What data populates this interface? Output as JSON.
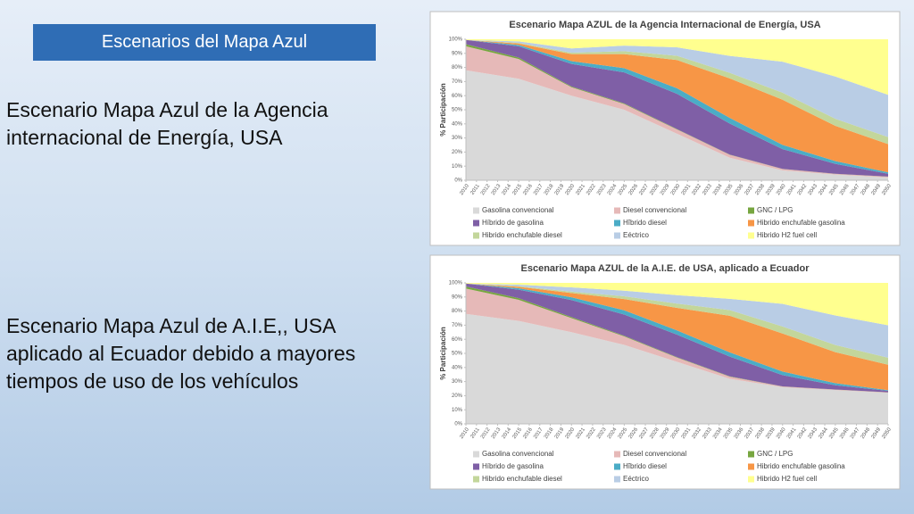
{
  "header": {
    "title": "Escenarios del Mapa Azul"
  },
  "bullets": [
    {
      "lines": [
        "Escenario Mapa Azul de la Agencia",
        "internacional de Energía, USA"
      ]
    },
    {
      "lines": [
        "Escenario Mapa Azul  de A.I.E,, USA",
        "aplicado al Ecuador debido a mayores",
        "tiempos de uso de los vehículos"
      ]
    }
  ],
  "chart_data": [
    {
      "type": "stacked_area",
      "title": "Escenario Mapa AZUL de la Agencia Internacional de Energía, USA",
      "y_label": "% Participación",
      "x": [
        2010,
        2015,
        2020,
        2025,
        2030,
        2035,
        2040,
        2045,
        2050
      ],
      "xticks": [
        2010,
        2011,
        2012,
        2013,
        2014,
        2015,
        2016,
        2017,
        2018,
        2019,
        2020,
        2021,
        2022,
        2023,
        2024,
        2025,
        2026,
        2027,
        2028,
        2029,
        2030,
        2031,
        2032,
        2033,
        2034,
        2035,
        2036,
        2037,
        2038,
        2039,
        2040,
        2041,
        2042,
        2043,
        2044,
        2045,
        2046,
        2047,
        2048,
        2049,
        2050
      ],
      "xlim": [
        2010,
        2050
      ],
      "ylim": [
        0,
        100
      ],
      "yticks": [
        {
          "value": 0,
          "label": "0%"
        },
        {
          "value": 10,
          "label": "10%"
        },
        {
          "value": 20,
          "label": "20%"
        },
        {
          "value": 30,
          "label": "30%"
        },
        {
          "value": 40,
          "label": "40%"
        },
        {
          "value": 50,
          "label": "50%"
        },
        {
          "value": 60,
          "label": "60%"
        },
        {
          "value": 70,
          "label": "70%"
        },
        {
          "value": 80,
          "label": "80%"
        },
        {
          "value": 90,
          "label": "90%"
        },
        {
          "value": 100,
          "label": "100%"
        }
      ],
      "series": [
        {
          "name": "Gasolina convencional",
          "color": "#d9d9d9",
          "values": [
            78,
            72,
            60,
            50,
            33,
            16,
            7,
            4,
            2
          ]
        },
        {
          "name": "Diesel convencional",
          "color": "#e6b9b8",
          "values": [
            17,
            14,
            6,
            4,
            3,
            2,
            1,
            0.5,
            0.5
          ]
        },
        {
          "name": "GNC / LPG",
          "color": "#77a640",
          "values": [
            1.5,
            1,
            0.5,
            0.5,
            0.3,
            0.2,
            0.1,
            0.1,
            0.1
          ]
        },
        {
          "name": "Híbrido de gasolina",
          "color": "#7f5fa6",
          "values": [
            3,
            8,
            16,
            22,
            25,
            22,
            14,
            7,
            2
          ]
        },
        {
          "name": "Hîbrido diesel",
          "color": "#4bacc6",
          "values": [
            0,
            1,
            2,
            3,
            4,
            4,
            3,
            2,
            1
          ]
        },
        {
          "name": "Hibrido enchufable gasolina",
          "color": "#f79646",
          "values": [
            0,
            1,
            5,
            10,
            20,
            28,
            32,
            25,
            20
          ]
        },
        {
          "name": "Hibrido enchufable diesel",
          "color": "#c3d69b",
          "values": [
            0,
            0.5,
            1,
            2,
            3,
            4,
            5,
            5,
            5
          ]
        },
        {
          "name": "Eéctrico",
          "color": "#b9cde5",
          "values": [
            0,
            1,
            3,
            4,
            6,
            12,
            22,
            30,
            30
          ]
        },
        {
          "name": "Hibrido H2 fuel cell",
          "color": "#ffff8f",
          "values": [
            0.5,
            1.5,
            6.5,
            4.5,
            5.7,
            11.8,
            15.9,
            26.4,
            39.4
          ]
        }
      ]
    },
    {
      "type": "stacked_area",
      "title": "Escenario Mapa AZUL de la A.I.E. de USA, aplicado a Ecuador",
      "y_label": "% Participación",
      "x": [
        2010,
        2015,
        2020,
        2025,
        2030,
        2035,
        2040,
        2045,
        2050
      ],
      "xticks": [
        2010,
        2011,
        2012,
        2013,
        2014,
        2015,
        2016,
        2017,
        2018,
        2019,
        2020,
        2021,
        2022,
        2023,
        2024,
        2025,
        2026,
        2027,
        2028,
        2029,
        2030,
        2031,
        2032,
        2033,
        2034,
        2035,
        2036,
        2037,
        2038,
        2039,
        2040,
        2041,
        2042,
        2043,
        2044,
        2045,
        2046,
        2047,
        2048,
        2049,
        2050
      ],
      "xlim": [
        2010,
        2050
      ],
      "ylim": [
        0,
        100
      ],
      "yticks": [
        {
          "value": 0,
          "label": "0%"
        },
        {
          "value": 10,
          "label": "10%"
        },
        {
          "value": 20,
          "label": "20%"
        },
        {
          "value": 30,
          "label": "30%"
        },
        {
          "value": 40,
          "label": "40%"
        },
        {
          "value": 50,
          "label": "50%"
        },
        {
          "value": 60,
          "label": "60%"
        },
        {
          "value": 70,
          "label": "70%"
        },
        {
          "value": 80,
          "label": "80%"
        },
        {
          "value": 90,
          "label": "90%"
        },
        {
          "value": 100,
          "label": "100%"
        }
      ],
      "series": [
        {
          "name": "Gasolina convencional",
          "color": "#d9d9d9",
          "values": [
            78,
            73,
            65,
            56,
            44,
            32,
            26,
            24,
            22
          ]
        },
        {
          "name": "Diesel convencional",
          "color": "#e6b9b8",
          "values": [
            18,
            15,
            10,
            6,
            3,
            1.5,
            0.5,
            0.3,
            0.3
          ]
        },
        {
          "name": "GNC / LPG",
          "color": "#77a640",
          "values": [
            1.5,
            1.2,
            0.8,
            0.5,
            0.3,
            0.2,
            0.1,
            0.1,
            0.1
          ]
        },
        {
          "name": "Híbrido de gasolina",
          "color": "#7f5fa6",
          "values": [
            2,
            6,
            12,
            15,
            16,
            14,
            8,
            3,
            1
          ]
        },
        {
          "name": "Hîbrido diesel",
          "color": "#4bacc6",
          "values": [
            0,
            1,
            2,
            3,
            3,
            3,
            2.5,
            1.5,
            0.5
          ]
        },
        {
          "name": "Hibrido enchufable gasolina",
          "color": "#f79646",
          "values": [
            0,
            1,
            3,
            8,
            16,
            26,
            27,
            22,
            18
          ]
        },
        {
          "name": "Hibrido enchufable diesel",
          "color": "#c3d69b",
          "values": [
            0,
            0.5,
            1,
            2,
            3,
            4,
            5,
            5,
            5
          ]
        },
        {
          "name": "Eéctrico",
          "color": "#b9cde5",
          "values": [
            0,
            1,
            3,
            4,
            6,
            8,
            16,
            21,
            23
          ]
        },
        {
          "name": "Hibrido H2 fuel cell",
          "color": "#ffff8f",
          "values": [
            0.5,
            1.3,
            3.2,
            5.5,
            8.7,
            11.3,
            14.9,
            23.1,
            30.1
          ]
        }
      ]
    }
  ]
}
